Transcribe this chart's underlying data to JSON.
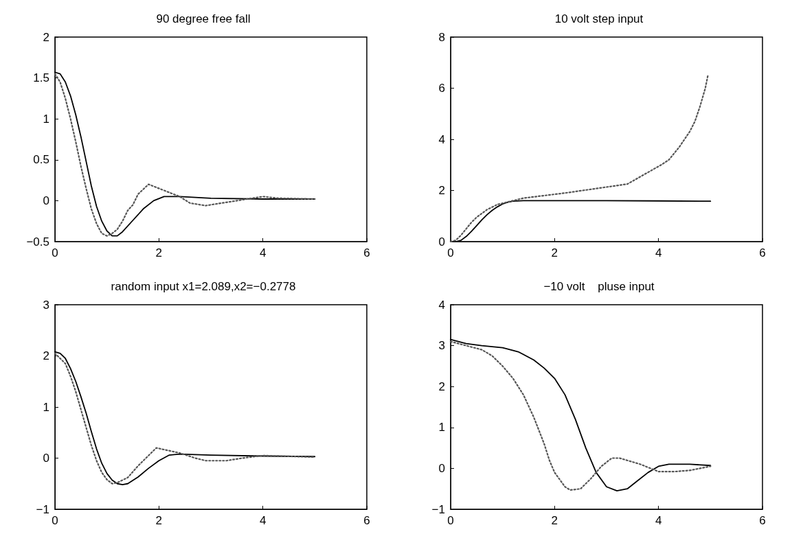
{
  "chart_data": [
    {
      "type": "line",
      "title": "90 degree free fall",
      "xlim": [
        0,
        6
      ],
      "xticks": [
        0,
        2,
        4,
        6
      ],
      "ylim": [
        -0.5,
        2
      ],
      "yticks": [
        -0.5,
        0,
        0.5,
        1,
        1.5,
        2
      ],
      "series": [
        {
          "color": "#000000",
          "line_style": "solid",
          "x": [
            0,
            0.1,
            0.2,
            0.3,
            0.4,
            0.5,
            0.6,
            0.7,
            0.8,
            0.9,
            1.0,
            1.1,
            1.2,
            1.3,
            1.5,
            1.7,
            1.9,
            2.1,
            2.4,
            3,
            4,
            5
          ],
          "values": [
            1.57,
            1.55,
            1.45,
            1.28,
            1.05,
            0.78,
            0.48,
            0.18,
            -0.07,
            -0.25,
            -0.37,
            -0.43,
            -0.43,
            -0.38,
            -0.24,
            -0.1,
            0.0,
            0.05,
            0.05,
            0.03,
            0.02,
            0.02
          ]
        },
        {
          "color": "#555555",
          "line_style": "dotted",
          "x": [
            0,
            0.1,
            0.2,
            0.3,
            0.4,
            0.5,
            0.6,
            0.7,
            0.8,
            0.9,
            1.0,
            1.1,
            1.2,
            1.3,
            1.4,
            1.5,
            1.6,
            1.8,
            2.4,
            2.6,
            2.9,
            3.2,
            3.5,
            3.8,
            4.0,
            4.3,
            5
          ],
          "values": [
            1.55,
            1.45,
            1.25,
            1.0,
            0.72,
            0.42,
            0.15,
            -0.1,
            -0.28,
            -0.4,
            -0.43,
            -0.4,
            -0.35,
            -0.25,
            -0.12,
            -0.05,
            0.08,
            0.2,
            0.05,
            -0.03,
            -0.06,
            -0.03,
            0.0,
            0.03,
            0.05,
            0.03,
            0.02
          ]
        }
      ]
    },
    {
      "type": "line",
      "title": "10 volt step input",
      "xlim": [
        0,
        6
      ],
      "xticks": [
        0,
        2,
        4,
        6
      ],
      "ylim": [
        0,
        8
      ],
      "yticks": [
        0,
        2,
        4,
        6,
        8
      ],
      "series": [
        {
          "color": "#000000",
          "line_style": "solid",
          "x": [
            0,
            0.1,
            0.2,
            0.3,
            0.4,
            0.5,
            0.6,
            0.7,
            0.8,
            0.9,
            1.0,
            1.1,
            1.2,
            1.4,
            2,
            3,
            4,
            5
          ],
          "values": [
            0,
            0,
            0.05,
            0.2,
            0.4,
            0.62,
            0.85,
            1.05,
            1.22,
            1.36,
            1.47,
            1.54,
            1.58,
            1.6,
            1.6,
            1.6,
            1.59,
            1.58
          ]
        },
        {
          "color": "#555555",
          "line_style": "dotted",
          "x": [
            0,
            0.1,
            0.2,
            0.3,
            0.4,
            0.5,
            0.6,
            0.7,
            0.8,
            0.9,
            1.0,
            1.2,
            1.4,
            2.2,
            3.4,
            4.05,
            4.2,
            4.4,
            4.6,
            4.7,
            4.8,
            4.9,
            4.95
          ],
          "values": [
            0,
            0.05,
            0.25,
            0.5,
            0.75,
            0.95,
            1.1,
            1.25,
            1.35,
            1.45,
            1.5,
            1.6,
            1.7,
            1.9,
            2.25,
            3.0,
            3.2,
            3.7,
            4.3,
            4.7,
            5.3,
            6.0,
            6.5
          ]
        }
      ]
    },
    {
      "type": "line",
      "title": "random input x1=2.089,x2=−0.2778",
      "xlim": [
        0,
        6
      ],
      "xticks": [
        0,
        2,
        4,
        6
      ],
      "ylim": [
        -1,
        3
      ],
      "yticks": [
        -1,
        0,
        1,
        2,
        3
      ],
      "series": [
        {
          "color": "#000000",
          "line_style": "solid",
          "x": [
            0,
            0.1,
            0.2,
            0.3,
            0.4,
            0.5,
            0.6,
            0.7,
            0.8,
            0.9,
            1.0,
            1.1,
            1.2,
            1.3,
            1.4,
            1.6,
            1.8,
            2.0,
            2.2,
            2.4,
            3,
            4,
            5
          ],
          "values": [
            2.08,
            2.05,
            1.95,
            1.75,
            1.5,
            1.2,
            0.88,
            0.52,
            0.18,
            -0.1,
            -0.3,
            -0.43,
            -0.5,
            -0.52,
            -0.5,
            -0.37,
            -0.2,
            -0.05,
            0.06,
            0.08,
            0.06,
            0.04,
            0.03
          ]
        },
        {
          "color": "#555555",
          "line_style": "dotted",
          "x": [
            0,
            0.2,
            0.3,
            0.4,
            0.5,
            0.6,
            0.7,
            0.8,
            0.9,
            1.0,
            1.1,
            1.2,
            1.4,
            1.6,
            1.8,
            1.95,
            2.4,
            2.7,
            2.9,
            3.3,
            3.6,
            4,
            5
          ],
          "values": [
            2.05,
            1.85,
            1.6,
            1.3,
            0.95,
            0.6,
            0.25,
            -0.05,
            -0.28,
            -0.42,
            -0.5,
            -0.48,
            -0.38,
            -0.15,
            0.05,
            0.2,
            0.1,
            0.0,
            -0.05,
            -0.05,
            0.0,
            0.05,
            0.02
          ]
        }
      ]
    },
    {
      "type": "line",
      "title": "−10 volt    pluse input",
      "xlim": [
        0,
        6
      ],
      "xticks": [
        0,
        2,
        4,
        6
      ],
      "ylim": [
        -1,
        4
      ],
      "yticks": [
        -1,
        0,
        1,
        2,
        3,
        4
      ],
      "series": [
        {
          "color": "#000000",
          "line_style": "solid",
          "x": [
            0,
            0.3,
            0.6,
            1.0,
            1.3,
            1.6,
            1.8,
            2.0,
            2.2,
            2.4,
            2.6,
            2.8,
            3.0,
            3.2,
            3.4,
            3.6,
            3.8,
            4.0,
            4.2,
            4.6,
            5
          ],
          "values": [
            3.15,
            3.05,
            3.0,
            2.95,
            2.85,
            2.65,
            2.45,
            2.2,
            1.8,
            1.2,
            0.5,
            -0.1,
            -0.45,
            -0.55,
            -0.5,
            -0.3,
            -0.1,
            0.05,
            0.1,
            0.1,
            0.07
          ]
        },
        {
          "color": "#555555",
          "line_style": "dotted",
          "x": [
            0,
            0.3,
            0.6,
            0.8,
            1.0,
            1.2,
            1.4,
            1.6,
            1.8,
            1.9,
            2.0,
            2.2,
            2.3,
            2.5,
            2.7,
            2.9,
            3.1,
            3.25,
            3.65,
            4.0,
            4.3,
            4.6,
            5
          ],
          "values": [
            3.1,
            3.0,
            2.9,
            2.75,
            2.5,
            2.2,
            1.8,
            1.25,
            0.6,
            0.2,
            -0.1,
            -0.45,
            -0.53,
            -0.5,
            -0.25,
            0.05,
            0.25,
            0.25,
            0.1,
            -0.08,
            -0.08,
            -0.05,
            0.05
          ]
        }
      ]
    }
  ]
}
